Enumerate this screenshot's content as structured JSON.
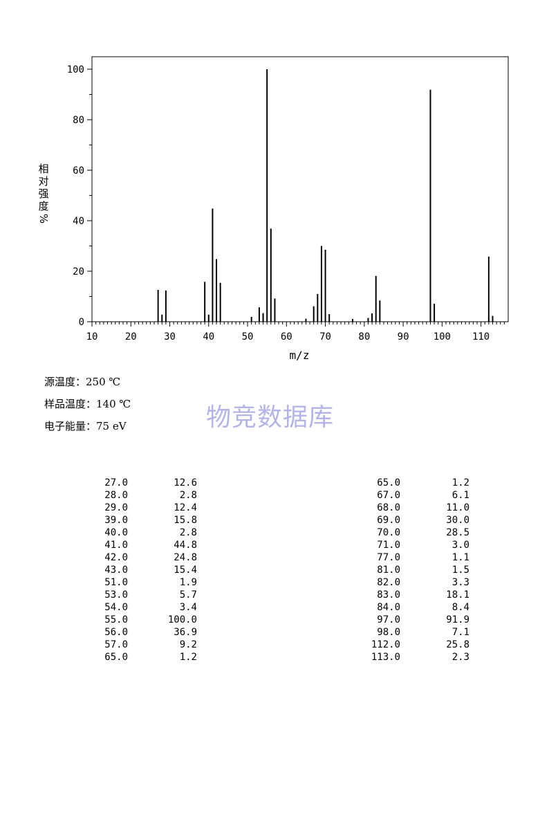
{
  "chart_data": {
    "type": "bar",
    "xlabel": "m/z",
    "ylabel": "相对强度%",
    "xlim": [
      10,
      117
    ],
    "ylim": [
      0,
      100
    ],
    "xticks": [
      10,
      20,
      30,
      40,
      50,
      60,
      70,
      80,
      90,
      100,
      110
    ],
    "yticks": [
      0,
      20,
      40,
      60,
      80,
      100
    ],
    "peaks": [
      {
        "mz": 27.0,
        "intensity": 12.6
      },
      {
        "mz": 28.0,
        "intensity": 2.8
      },
      {
        "mz": 29.0,
        "intensity": 12.4
      },
      {
        "mz": 39.0,
        "intensity": 15.8
      },
      {
        "mz": 40.0,
        "intensity": 2.8
      },
      {
        "mz": 41.0,
        "intensity": 44.8
      },
      {
        "mz": 42.0,
        "intensity": 24.8
      },
      {
        "mz": 43.0,
        "intensity": 15.4
      },
      {
        "mz": 51.0,
        "intensity": 1.9
      },
      {
        "mz": 53.0,
        "intensity": 5.7
      },
      {
        "mz": 54.0,
        "intensity": 3.4
      },
      {
        "mz": 55.0,
        "intensity": 100.0
      },
      {
        "mz": 56.0,
        "intensity": 36.9
      },
      {
        "mz": 57.0,
        "intensity": 9.2
      },
      {
        "mz": 65.0,
        "intensity": 1.2
      },
      {
        "mz": 67.0,
        "intensity": 6.1
      },
      {
        "mz": 68.0,
        "intensity": 11.0
      },
      {
        "mz": 69.0,
        "intensity": 30.0
      },
      {
        "mz": 70.0,
        "intensity": 28.5
      },
      {
        "mz": 71.0,
        "intensity": 3.0
      },
      {
        "mz": 77.0,
        "intensity": 1.1
      },
      {
        "mz": 81.0,
        "intensity": 1.5
      },
      {
        "mz": 82.0,
        "intensity": 3.3
      },
      {
        "mz": 83.0,
        "intensity": 18.1
      },
      {
        "mz": 84.0,
        "intensity": 8.4
      },
      {
        "mz": 97.0,
        "intensity": 91.9
      },
      {
        "mz": 98.0,
        "intensity": 7.1
      },
      {
        "mz": 112.0,
        "intensity": 25.8
      },
      {
        "mz": 113.0,
        "intensity": 2.3
      }
    ]
  },
  "info": {
    "source_temp": "源温度：250 ℃",
    "sample_temp": "样品温度：140 ℃",
    "electron_energy": "电子能量：75 eV"
  },
  "watermark": "物竞数据库",
  "table": {
    "left": [
      [
        "27.0",
        "12.6"
      ],
      [
        "28.0",
        "2.8"
      ],
      [
        "29.0",
        "12.4"
      ],
      [
        "39.0",
        "15.8"
      ],
      [
        "40.0",
        "2.8"
      ],
      [
        "41.0",
        "44.8"
      ],
      [
        "42.0",
        "24.8"
      ],
      [
        "43.0",
        "15.4"
      ],
      [
        "51.0",
        "1.9"
      ],
      [
        "53.0",
        "5.7"
      ],
      [
        "54.0",
        "3.4"
      ],
      [
        "55.0",
        "100.0"
      ],
      [
        "56.0",
        "36.9"
      ],
      [
        "57.0",
        "9.2"
      ],
      [
        "65.0",
        "1.2"
      ]
    ],
    "right": [
      [
        "65.0",
        "1.2"
      ],
      [
        "67.0",
        "6.1"
      ],
      [
        "68.0",
        "11.0"
      ],
      [
        "69.0",
        "30.0"
      ],
      [
        "70.0",
        "28.5"
      ],
      [
        "71.0",
        "3.0"
      ],
      [
        "77.0",
        "1.1"
      ],
      [
        "81.0",
        "1.5"
      ],
      [
        "82.0",
        "3.3"
      ],
      [
        "83.0",
        "18.1"
      ],
      [
        "84.0",
        "8.4"
      ],
      [
        "97.0",
        "91.9"
      ],
      [
        "98.0",
        "7.1"
      ],
      [
        "112.0",
        "25.8"
      ],
      [
        "113.0",
        "2.3"
      ]
    ]
  }
}
